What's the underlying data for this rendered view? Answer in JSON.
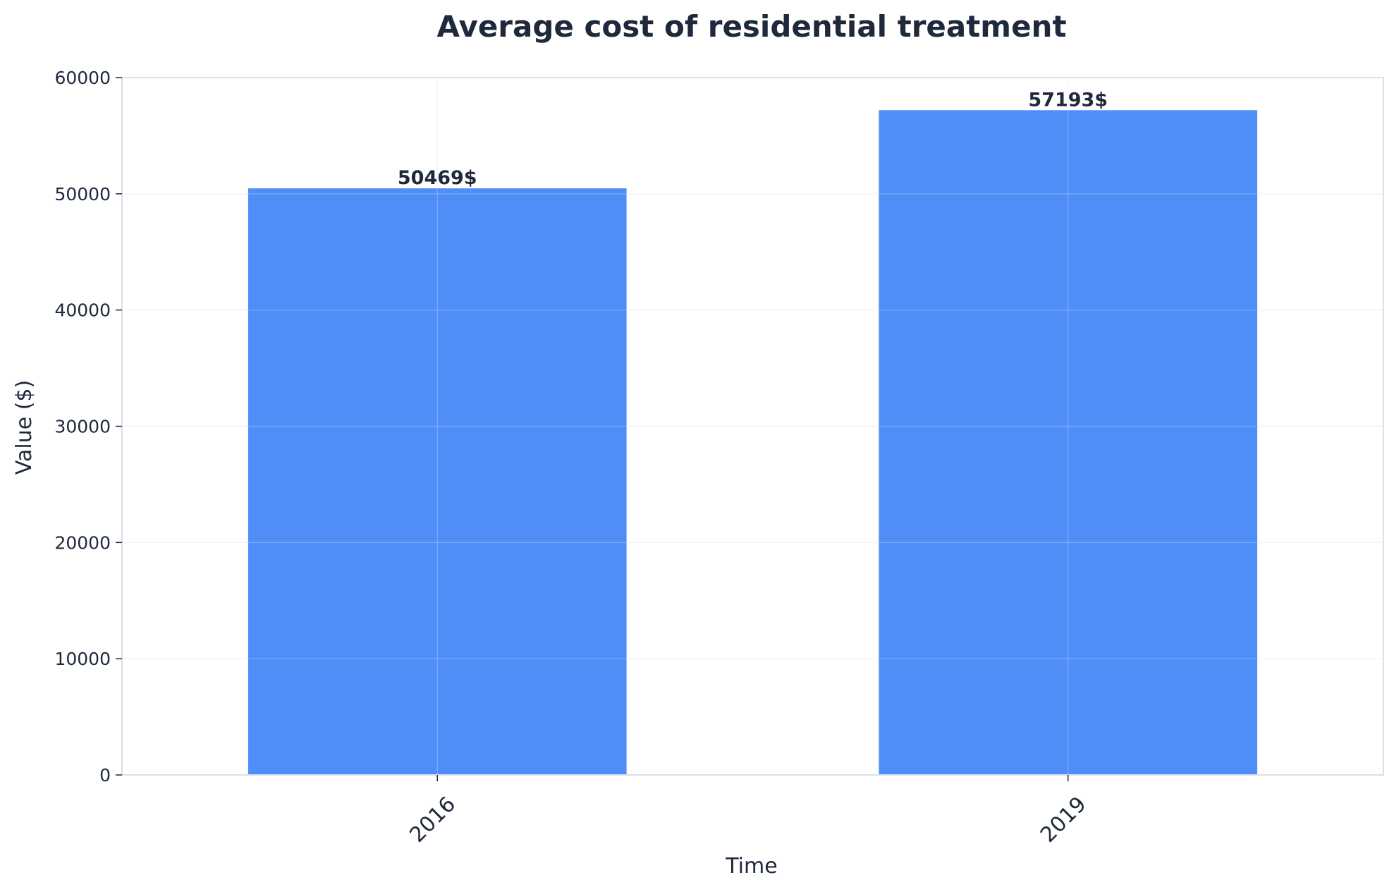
{
  "chart_data": {
    "type": "bar",
    "title": "Average cost of residential treatment",
    "xlabel": "Time",
    "ylabel": "Value ($)",
    "categories": [
      "2016",
      "2019"
    ],
    "values": [
      50469,
      57193
    ],
    "value_labels": [
      "50469$",
      "57193$"
    ],
    "ylim": [
      0,
      60000
    ],
    "yticks": [
      "0",
      "10000",
      "20000",
      "30000",
      "40000",
      "50000",
      "60000"
    ],
    "grid": true,
    "legend": "none",
    "colors": {
      "bar": "#4f8df7",
      "text": "#1e293b",
      "axes": "#d8e0ec",
      "grid": "#eef2f7"
    }
  }
}
